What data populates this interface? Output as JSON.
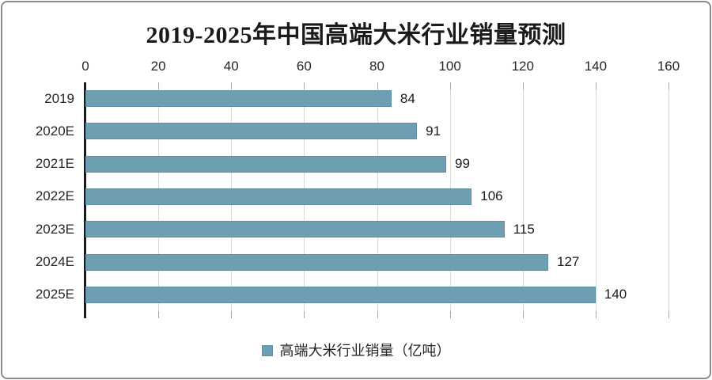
{
  "chart_data": {
    "type": "bar",
    "orientation": "horizontal",
    "title": "2019-2025年中国高端大米行业销量预测",
    "categories": [
      "2019",
      "2020E",
      "2021E",
      "2022E",
      "2023E",
      "2024E",
      "2025E"
    ],
    "values": [
      84,
      91,
      99,
      106,
      115,
      127,
      140
    ],
    "xlabel": "",
    "ylabel": "",
    "xlim": [
      0,
      160
    ],
    "x_ticks": [
      "0",
      "20",
      "40",
      "60",
      "80",
      "100",
      "120",
      "140",
      "160"
    ],
    "grid": "vertical",
    "value_labels_shown": true,
    "legend": {
      "label": "高端大米行业销量（亿吨）",
      "position": "bottom"
    },
    "colors": {
      "bar": "#6d9eb2",
      "bar_border": "#5e8fa4",
      "gridline": "#d9d9d9",
      "tick": "#a8a8a8",
      "axis": "#1a1a1a",
      "text": "#262626",
      "frame_border": "#8c8c8c",
      "background": "#ffffff"
    }
  }
}
